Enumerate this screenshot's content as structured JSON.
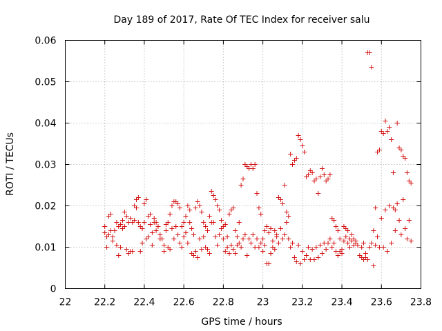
{
  "chart_data": {
    "type": "scatter",
    "title": "Day 189 of 2017, Rate Of TEC Index for receiver salu",
    "xlabel": "GPS time / hours",
    "ylabel": "ROTI / TECUs",
    "xlim": [
      22,
      23.8
    ],
    "ylim": [
      0,
      0.06
    ],
    "xticks": [
      "22",
      "22.2",
      "22.4",
      "22.6",
      "22.8",
      "23",
      "23.2",
      "23.4",
      "23.6",
      "23.8"
    ],
    "yticks": [
      "0",
      "0.01",
      "0.02",
      "0.03",
      "0.04",
      "0.05",
      "0.06"
    ],
    "grid": true,
    "marker": "+",
    "color": "#d41010",
    "series": [
      {
        "name": "ROTI",
        "points": [
          [
            22.2,
            0.015
          ],
          [
            22.2,
            0.0135
          ],
          [
            22.21,
            0.0125
          ],
          [
            22.21,
            0.01
          ],
          [
            22.22,
            0.013
          ],
          [
            22.22,
            0.0175
          ],
          [
            22.23,
            0.018
          ],
          [
            22.23,
            0.014
          ],
          [
            22.24,
            0.0125
          ],
          [
            22.24,
            0.0115
          ],
          [
            22.25,
            0.014
          ],
          [
            22.26,
            0.016
          ],
          [
            22.26,
            0.0105
          ],
          [
            22.27,
            0.015
          ],
          [
            22.27,
            0.008
          ],
          [
            22.28,
            0.0155
          ],
          [
            22.28,
            0.01
          ],
          [
            22.29,
            0.0145
          ],
          [
            22.29,
            0.0165
          ],
          [
            22.3,
            0.015
          ],
          [
            22.3,
            0.0185
          ],
          [
            22.31,
            0.0175
          ],
          [
            22.31,
            0.0095
          ],
          [
            22.32,
            0.016
          ],
          [
            22.32,
            0.0085
          ],
          [
            22.33,
            0.017
          ],
          [
            22.33,
            0.009
          ],
          [
            22.34,
            0.016
          ],
          [
            22.34,
            0.009
          ],
          [
            22.35,
            0.02
          ],
          [
            22.35,
            0.0165
          ],
          [
            22.36,
            0.0215
          ],
          [
            22.36,
            0.0195
          ],
          [
            22.37,
            0.022
          ],
          [
            22.37,
            0.016
          ],
          [
            22.38,
            0.015
          ],
          [
            22.38,
            0.009
          ],
          [
            22.39,
            0.0145
          ],
          [
            22.39,
            0.011
          ],
          [
            22.4,
            0.0205
          ],
          [
            22.4,
            0.016
          ],
          [
            22.41,
            0.0215
          ],
          [
            22.41,
            0.012
          ],
          [
            22.42,
            0.0175
          ],
          [
            22.42,
            0.0125
          ],
          [
            22.43,
            0.018
          ],
          [
            22.43,
            0.0155
          ],
          [
            22.44,
            0.0135
          ],
          [
            22.44,
            0.0105
          ],
          [
            22.45,
            0.016
          ],
          [
            22.45,
            0.017
          ],
          [
            22.46,
            0.016
          ],
          [
            22.46,
            0.014
          ],
          [
            22.47,
            0.015
          ],
          [
            22.48,
            0.013
          ],
          [
            22.48,
            0.012
          ],
          [
            22.49,
            0.012
          ],
          [
            22.5,
            0.0105
          ],
          [
            22.5,
            0.009
          ],
          [
            22.51,
            0.0155
          ],
          [
            22.51,
            0.014
          ],
          [
            22.52,
            0.016
          ],
          [
            22.52,
            0.01
          ],
          [
            22.53,
            0.018
          ],
          [
            22.53,
            0.0095
          ],
          [
            22.54,
            0.02
          ],
          [
            22.54,
            0.0145
          ],
          [
            22.55,
            0.021
          ],
          [
            22.55,
            0.012
          ],
          [
            22.56,
            0.021
          ],
          [
            22.56,
            0.015
          ],
          [
            22.57,
            0.0205
          ],
          [
            22.57,
            0.013
          ],
          [
            22.58,
            0.0195
          ],
          [
            22.58,
            0.011
          ],
          [
            22.59,
            0.015
          ],
          [
            22.59,
            0.01
          ],
          [
            22.6,
            0.0125
          ],
          [
            22.6,
            0.016
          ],
          [
            22.61,
            0.0175
          ],
          [
            22.61,
            0.0135
          ],
          [
            22.62,
            0.02
          ],
          [
            22.62,
            0.011
          ],
          [
            22.63,
            0.019
          ],
          [
            22.63,
            0.016
          ],
          [
            22.64,
            0.0145
          ],
          [
            22.64,
            0.0085
          ],
          [
            22.65,
            0.013
          ],
          [
            22.65,
            0.008
          ],
          [
            22.66,
            0.0195
          ],
          [
            22.66,
            0.009
          ],
          [
            22.67,
            0.021
          ],
          [
            22.67,
            0.0075
          ],
          [
            22.68,
            0.02
          ],
          [
            22.68,
            0.012
          ],
          [
            22.69,
            0.0185
          ],
          [
            22.69,
            0.0095
          ],
          [
            22.7,
            0.016
          ],
          [
            22.7,
            0.0125
          ],
          [
            22.71,
            0.015
          ],
          [
            22.71,
            0.01
          ],
          [
            22.72,
            0.014
          ],
          [
            22.72,
            0.0095
          ],
          [
            22.73,
            0.0175
          ],
          [
            22.73,
            0.0085
          ],
          [
            22.74,
            0.0235
          ],
          [
            22.74,
            0.016
          ],
          [
            22.75,
            0.0225
          ],
          [
            22.75,
            0.016
          ],
          [
            22.76,
            0.0215
          ],
          [
            22.76,
            0.0125
          ],
          [
            22.77,
            0.02
          ],
          [
            22.77,
            0.0105
          ],
          [
            22.78,
            0.019
          ],
          [
            22.78,
            0.013
          ],
          [
            22.79,
            0.0165
          ],
          [
            22.79,
            0.0145
          ],
          [
            22.8,
            0.015
          ],
          [
            22.8,
            0.012
          ],
          [
            22.81,
            0.0155
          ],
          [
            22.81,
            0.009
          ],
          [
            22.82,
            0.0125
          ],
          [
            22.82,
            0.01
          ],
          [
            22.83,
            0.018
          ],
          [
            22.83,
            0.0085
          ],
          [
            22.84,
            0.019
          ],
          [
            22.84,
            0.0105
          ],
          [
            22.85,
            0.0195
          ],
          [
            22.85,
            0.0095
          ],
          [
            22.86,
            0.014
          ],
          [
            22.86,
            0.0085
          ],
          [
            22.87,
            0.0125
          ],
          [
            22.87,
            0.0105
          ],
          [
            22.88,
            0.016
          ],
          [
            22.88,
            0.011
          ],
          [
            22.89,
            0.025
          ],
          [
            22.89,
            0.01
          ],
          [
            22.9,
            0.0265
          ],
          [
            22.9,
            0.012
          ],
          [
            22.91,
            0.03
          ],
          [
            22.91,
            0.013
          ],
          [
            22.92,
            0.0295
          ],
          [
            22.92,
            0.008
          ],
          [
            22.93,
            0.029
          ],
          [
            22.93,
            0.012
          ],
          [
            22.94,
            0.03
          ],
          [
            22.94,
            0.011
          ],
          [
            22.95,
            0.029
          ],
          [
            22.95,
            0.013
          ],
          [
            22.96,
            0.03
          ],
          [
            22.96,
            0.01
          ],
          [
            22.97,
            0.023
          ],
          [
            22.97,
            0.012
          ],
          [
            22.98,
            0.0195
          ],
          [
            22.98,
            0.01
          ],
          [
            22.99,
            0.018
          ],
          [
            22.99,
            0.011
          ],
          [
            23.0,
            0.012
          ],
          [
            23.0,
            0.009
          ],
          [
            23.01,
            0.0105
          ],
          [
            23.01,
            0.014
          ],
          [
            23.02,
            0.015
          ],
          [
            23.02,
            0.006
          ],
          [
            23.03,
            0.0135
          ],
          [
            23.03,
            0.006
          ],
          [
            23.04,
            0.0145
          ],
          [
            23.04,
            0.0085
          ],
          [
            23.05,
            0.0115
          ],
          [
            23.05,
            0.01
          ],
          [
            23.06,
            0.014
          ],
          [
            23.06,
            0.0095
          ],
          [
            23.07,
            0.013
          ],
          [
            23.07,
            0.0125
          ],
          [
            23.08,
            0.022
          ],
          [
            23.08,
            0.011
          ],
          [
            23.09,
            0.0215
          ],
          [
            23.09,
            0.0145
          ],
          [
            23.1,
            0.0205
          ],
          [
            23.1,
            0.012
          ],
          [
            23.11,
            0.025
          ],
          [
            23.11,
            0.013
          ],
          [
            23.12,
            0.0185
          ],
          [
            23.12,
            0.016
          ],
          [
            23.13,
            0.0175
          ],
          [
            23.13,
            0.012
          ],
          [
            23.14,
            0.0325
          ],
          [
            23.14,
            0.01
          ],
          [
            23.15,
            0.03
          ],
          [
            23.15,
            0.011
          ],
          [
            23.16,
            0.031
          ],
          [
            23.16,
            0.0075
          ],
          [
            23.17,
            0.0315
          ],
          [
            23.17,
            0.0065
          ],
          [
            23.18,
            0.037
          ],
          [
            23.18,
            0.0105
          ],
          [
            23.19,
            0.036
          ],
          [
            23.19,
            0.006
          ],
          [
            23.2,
            0.0345
          ],
          [
            23.2,
            0.009
          ],
          [
            23.21,
            0.033
          ],
          [
            23.21,
            0.007
          ],
          [
            23.22,
            0.027
          ],
          [
            23.22,
            0.008
          ],
          [
            23.23,
            0.0275
          ],
          [
            23.23,
            0.01
          ],
          [
            23.24,
            0.0285
          ],
          [
            23.24,
            0.007
          ],
          [
            23.25,
            0.028
          ],
          [
            23.25,
            0.0095
          ],
          [
            23.26,
            0.026
          ],
          [
            23.26,
            0.007
          ],
          [
            23.27,
            0.0265
          ],
          [
            23.27,
            0.01
          ],
          [
            23.28,
            0.023
          ],
          [
            23.28,
            0.0075
          ],
          [
            23.29,
            0.027
          ],
          [
            23.29,
            0.0105
          ],
          [
            23.3,
            0.029
          ],
          [
            23.3,
            0.0085
          ],
          [
            23.31,
            0.0275
          ],
          [
            23.31,
            0.011
          ],
          [
            23.32,
            0.026
          ],
          [
            23.32,
            0.0095
          ],
          [
            23.33,
            0.0265
          ],
          [
            23.33,
            0.011
          ],
          [
            23.34,
            0.0275
          ],
          [
            23.34,
            0.012
          ],
          [
            23.35,
            0.017
          ],
          [
            23.35,
            0.01
          ],
          [
            23.36,
            0.0165
          ],
          [
            23.36,
            0.011
          ],
          [
            23.37,
            0.015
          ],
          [
            23.37,
            0.009
          ],
          [
            23.38,
            0.014
          ],
          [
            23.38,
            0.008
          ],
          [
            23.39,
            0.012
          ],
          [
            23.39,
            0.009
          ],
          [
            23.4,
            0.0095
          ],
          [
            23.4,
            0.0085
          ],
          [
            23.41,
            0.015
          ],
          [
            23.41,
            0.0115
          ],
          [
            23.42,
            0.0145
          ],
          [
            23.42,
            0.0125
          ],
          [
            23.43,
            0.014
          ],
          [
            23.43,
            0.011
          ],
          [
            23.44,
            0.012
          ],
          [
            23.44,
            0.01
          ],
          [
            23.45,
            0.0115
          ],
          [
            23.45,
            0.013
          ],
          [
            23.46,
            0.012
          ],
          [
            23.46,
            0.0105
          ],
          [
            23.47,
            0.011
          ],
          [
            23.47,
            0.0115
          ],
          [
            23.48,
            0.0105
          ],
          [
            23.49,
            0.008
          ],
          [
            23.5,
            0.0075
          ],
          [
            23.5,
            0.01
          ],
          [
            23.51,
            0.007
          ],
          [
            23.51,
            0.011
          ],
          [
            23.52,
            0.0075
          ],
          [
            23.52,
            0.0085
          ],
          [
            23.53,
            0.057
          ],
          [
            23.53,
            0.007
          ],
          [
            23.54,
            0.057
          ],
          [
            23.54,
            0.01
          ],
          [
            23.55,
            0.0535
          ],
          [
            23.55,
            0.011
          ],
          [
            23.56,
            0.014
          ],
          [
            23.56,
            0.0055
          ],
          [
            23.57,
            0.0195
          ],
          [
            23.57,
            0.0105
          ],
          [
            23.58,
            0.033
          ],
          [
            23.58,
            0.0125
          ],
          [
            23.59,
            0.0335
          ],
          [
            23.59,
            0.01
          ],
          [
            23.6,
            0.038
          ],
          [
            23.6,
            0.017
          ],
          [
            23.61,
            0.0375
          ],
          [
            23.61,
            0.01
          ],
          [
            23.62,
            0.0405
          ],
          [
            23.62,
            0.019
          ],
          [
            23.63,
            0.038
          ],
          [
            23.63,
            0.009
          ],
          [
            23.64,
            0.039
          ],
          [
            23.64,
            0.02
          ],
          [
            23.65,
            0.036
          ],
          [
            23.65,
            0.011
          ],
          [
            23.66,
            0.028
          ],
          [
            23.66,
            0.0195
          ],
          [
            23.67,
            0.019
          ],
          [
            23.67,
            0.014
          ],
          [
            23.68,
            0.04
          ],
          [
            23.68,
            0.0205
          ],
          [
            23.69,
            0.034
          ],
          [
            23.69,
            0.0165
          ],
          [
            23.7,
            0.0335
          ],
          [
            23.7,
            0.013
          ],
          [
            23.71,
            0.032
          ],
          [
            23.71,
            0.0215
          ],
          [
            23.72,
            0.0315
          ],
          [
            23.72,
            0.0145
          ],
          [
            23.73,
            0.028
          ],
          [
            23.73,
            0.012
          ],
          [
            23.74,
            0.026
          ],
          [
            23.74,
            0.0165
          ],
          [
            23.75,
            0.0255
          ],
          [
            23.75,
            0.0115
          ]
        ]
      }
    ]
  }
}
